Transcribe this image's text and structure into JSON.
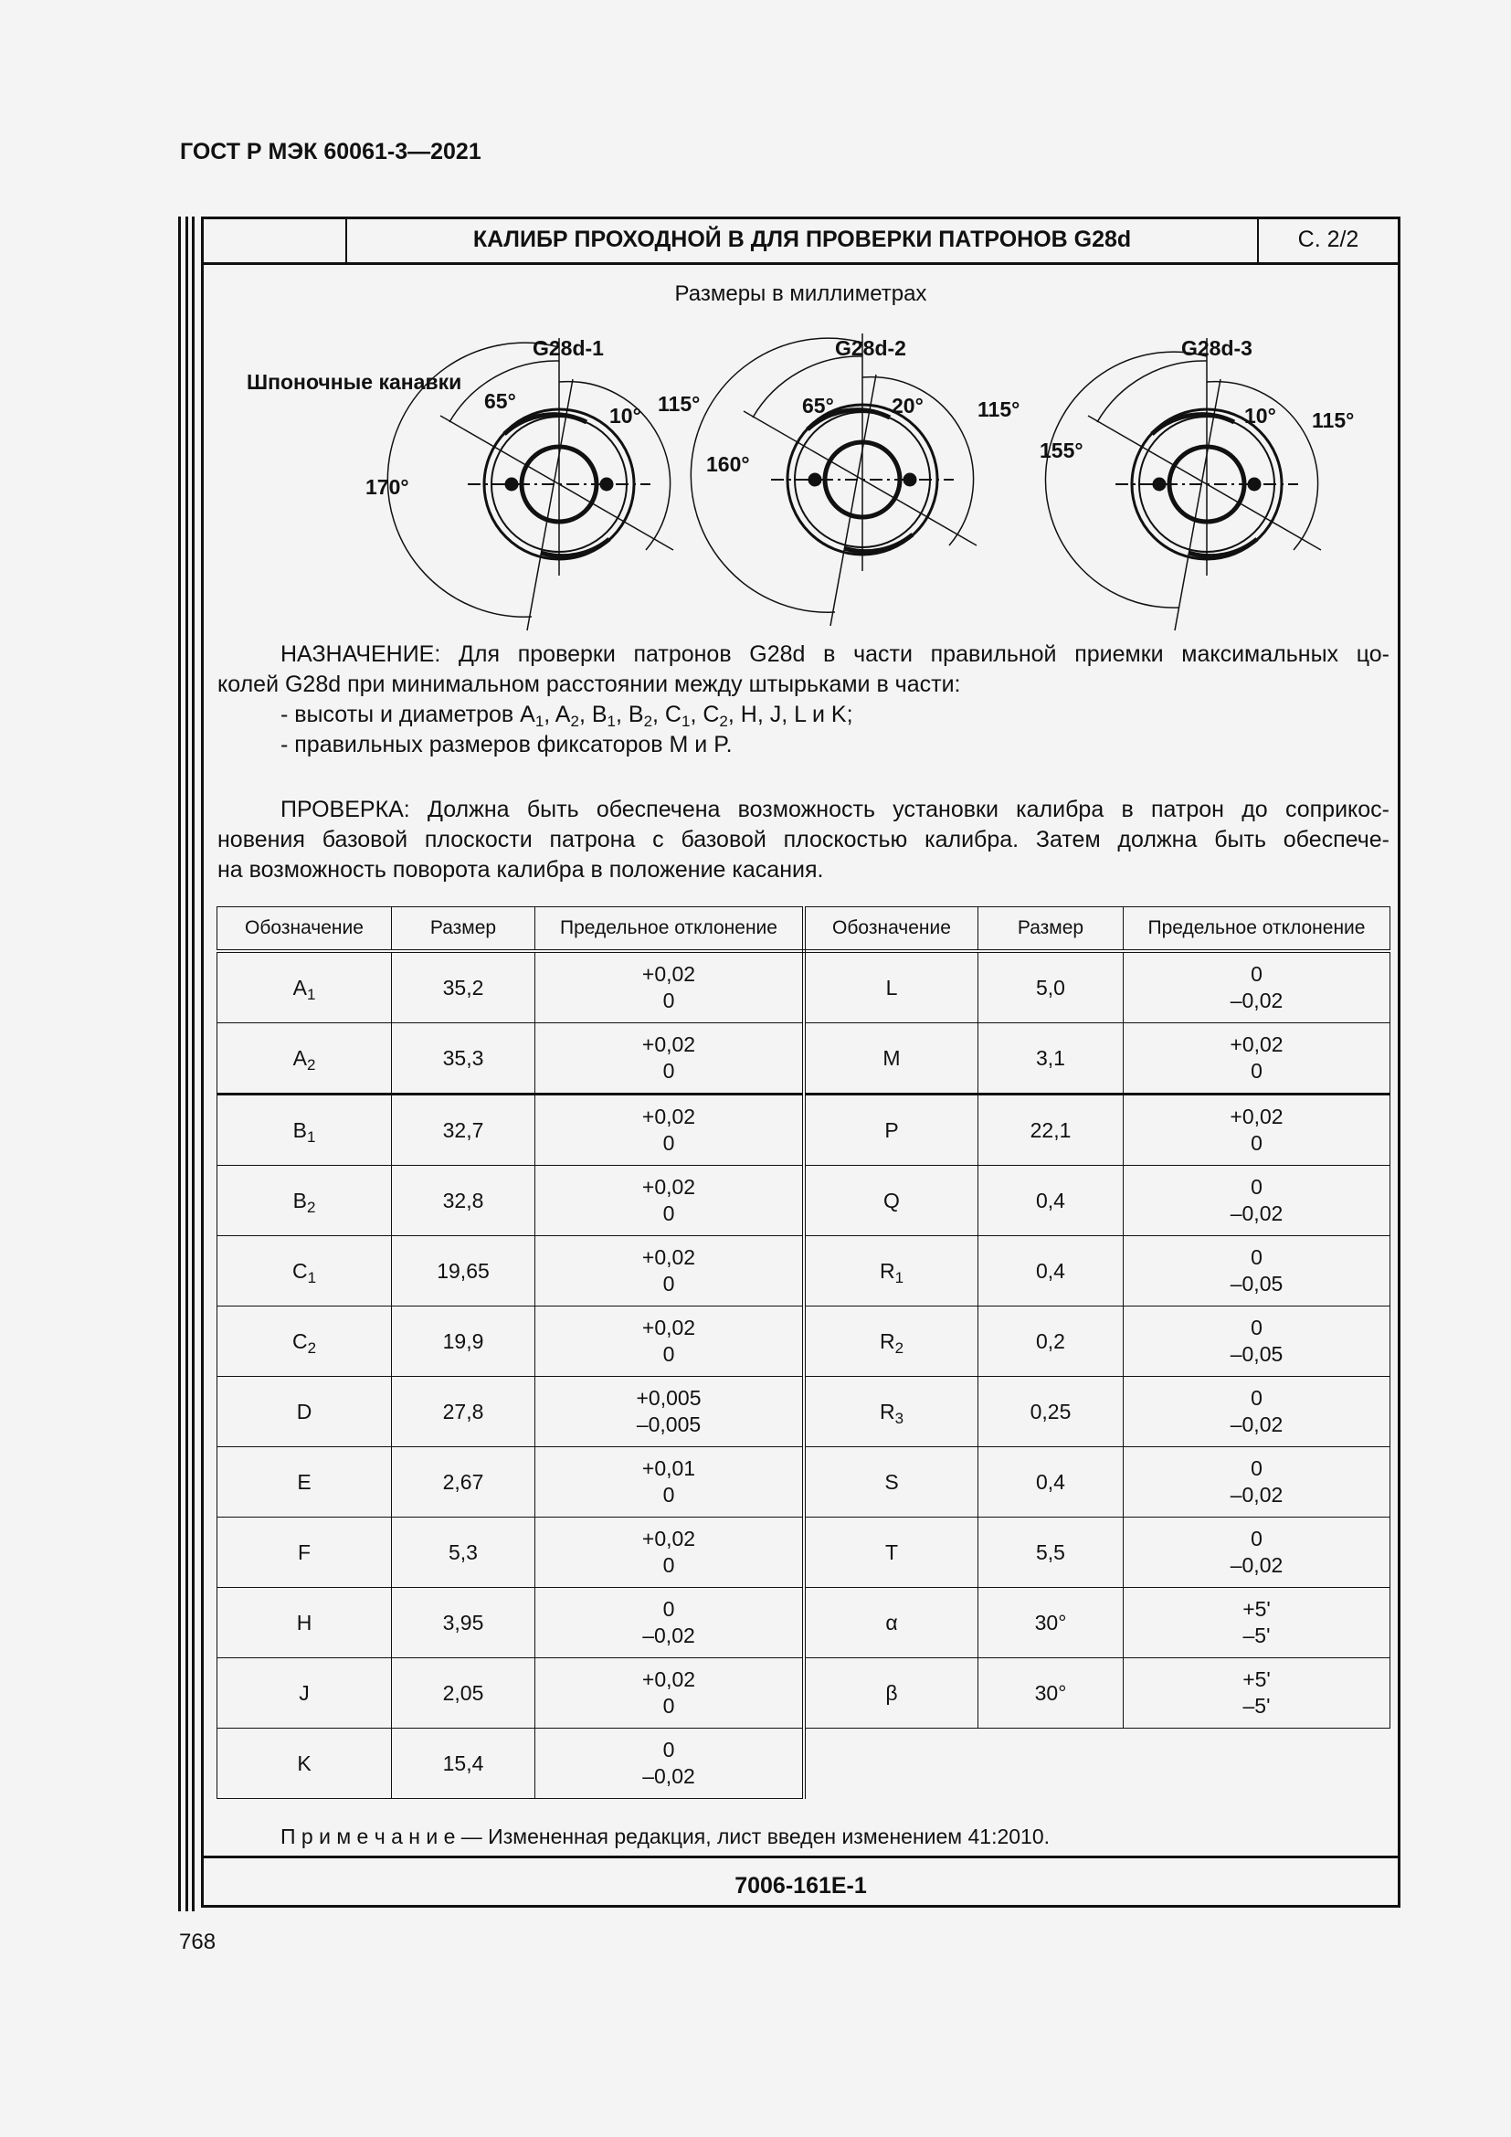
{
  "doc_header": "ГОСТ Р МЭК 60061-3—2021",
  "title": "КАЛИБР ПРОХОДНОЙ В ДЛЯ ПРОВЕРКИ ПАТРОНОВ G28d",
  "page_ref": "С. 2/2",
  "units_note": "Размеры в миллиметрах",
  "diagram": {
    "keyways_label": "Шпоночные канавки",
    "views": [
      {
        "name": "G28d-1",
        "angles": [
          "65°",
          "10°",
          "115°",
          "170°"
        ]
      },
      {
        "name": "G28d-2",
        "angles": [
          "65°",
          "20°",
          "115°",
          "160°"
        ]
      },
      {
        "name": "G28d-3",
        "angles": [
          "10°",
          "115°",
          "155°"
        ]
      }
    ]
  },
  "purpose": {
    "lines": [
      [
        {
          "t": "НАЗНАЧЕНИЕ: Для проверки патронов G28d в части правильной приемки максимальных цо-"
        }
      ],
      [
        {
          "t": "колей G28d при минимальном расстоянии между штырьками в части:"
        }
      ],
      [
        {
          "t": "- высоты и диаметров A"
        },
        {
          "s": "1"
        },
        {
          "t": ", A"
        },
        {
          "s": "2"
        },
        {
          "t": ", B"
        },
        {
          "s": "1"
        },
        {
          "t": ", B"
        },
        {
          "s": "2"
        },
        {
          "t": ", C"
        },
        {
          "s": "1"
        },
        {
          "t": ", C"
        },
        {
          "s": "2"
        },
        {
          "t": ", H, J, L и K;"
        }
      ],
      [
        {
          "t": "- правильных размеров фиксаторов M и P."
        }
      ]
    ]
  },
  "check": {
    "lines": [
      "ПРОВЕРКА: Должна быть обеспечена возможность установки калибра в патрон до соприкос-",
      "новения базовой плоскости патрона с базовой плоскостью калибра. Затем должна быть обеспече-",
      "на возможность поворота калибра в положение касания."
    ]
  },
  "table": {
    "headers": [
      "Обозначение",
      "Размер",
      "Предельное отклонение",
      "Обозначение",
      "Размер",
      "Предельное отклонение"
    ],
    "left": [
      {
        "d": "A",
        "sub": "1",
        "size": "35,2",
        "dev": [
          "+0,02",
          "0"
        ]
      },
      {
        "d": "A",
        "sub": "2",
        "size": "35,3",
        "dev": [
          "+0,02",
          "0"
        ]
      },
      {
        "d": "B",
        "sub": "1",
        "size": "32,7",
        "dev": [
          "+0,02",
          "0"
        ]
      },
      {
        "d": "B",
        "sub": "2",
        "size": "32,8",
        "dev": [
          "+0,02",
          "0"
        ]
      },
      {
        "d": "C",
        "sub": "1",
        "size": "19,65",
        "dev": [
          "+0,02",
          "0"
        ]
      },
      {
        "d": "C",
        "sub": "2",
        "size": "19,9",
        "dev": [
          "+0,02",
          "0"
        ]
      },
      {
        "d": "D",
        "sub": "",
        "size": "27,8",
        "dev": [
          "+0,005",
          "–0,005"
        ]
      },
      {
        "d": "E",
        "sub": "",
        "size": "2,67",
        "dev": [
          "+0,01",
          "0"
        ]
      },
      {
        "d": "F",
        "sub": "",
        "size": "5,3",
        "dev": [
          "+0,02",
          "0"
        ]
      },
      {
        "d": "H",
        "sub": "",
        "size": "3,95",
        "dev": [
          "0",
          "–0,02"
        ]
      },
      {
        "d": "J",
        "sub": "",
        "size": "2,05",
        "dev": [
          "+0,02",
          "0"
        ]
      },
      {
        "d": "K",
        "sub": "",
        "size": "15,4",
        "dev": [
          "0",
          "–0,02"
        ]
      }
    ],
    "right": [
      {
        "d": "L",
        "sub": "",
        "size": "5,0",
        "dev": [
          "0",
          "–0,02"
        ]
      },
      {
        "d": "M",
        "sub": "",
        "size": "3,1",
        "dev": [
          "+0,02",
          "0"
        ]
      },
      {
        "d": "P",
        "sub": "",
        "size": "22,1",
        "dev": [
          "+0,02",
          "0"
        ]
      },
      {
        "d": "Q",
        "sub": "",
        "size": "0,4",
        "dev": [
          "0",
          "–0,02"
        ]
      },
      {
        "d": "R",
        "sub": "1",
        "size": "0,4",
        "dev": [
          "0",
          "–0,05"
        ]
      },
      {
        "d": "R",
        "sub": "2",
        "size": "0,2",
        "dev": [
          "0",
          "–0,05"
        ]
      },
      {
        "d": "R",
        "sub": "3",
        "size": "0,25",
        "dev": [
          "0",
          "–0,02"
        ]
      },
      {
        "d": "S",
        "sub": "",
        "size": "0,4",
        "dev": [
          "0",
          "–0,02"
        ]
      },
      {
        "d": "T",
        "sub": "",
        "size": "5,5",
        "dev": [
          "0",
          "–0,02"
        ]
      },
      {
        "d": "α",
        "sub": "",
        "size": "30°",
        "dev": [
          "+5'",
          "–5'"
        ]
      },
      {
        "d": "β",
        "sub": "",
        "size": "30°",
        "dev": [
          "+5'",
          "–5'"
        ]
      }
    ]
  },
  "note": "П р и м е ч а н и е — Измененная редакция, лист введен изменением 41:2010.",
  "footer_code": "7006-161E-1",
  "page_number": "768"
}
